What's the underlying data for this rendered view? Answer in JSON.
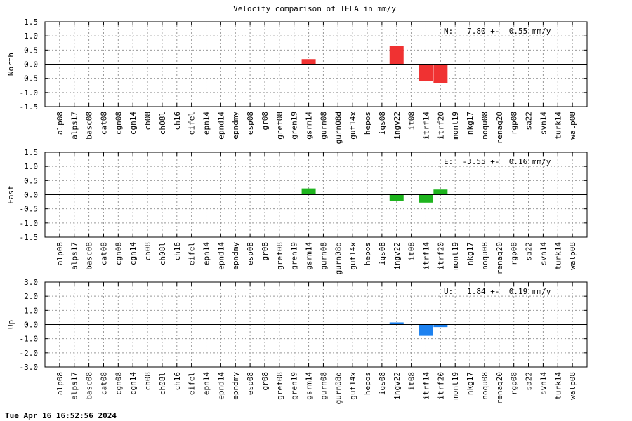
{
  "figure": {
    "title": "Velocity comparison of TELA in mm/y",
    "footer": "Tue Apr 16 16:52:56 2024"
  },
  "chart_data": [
    {
      "type": "bar",
      "ylabel": "North",
      "annotation": "N:   7.80 +-  0.55 mm/y",
      "ylim": [
        -1.5,
        1.5
      ],
      "yticks": [
        -1.5,
        -1.0,
        -0.5,
        0.0,
        0.5,
        1.0,
        1.5
      ],
      "ytick_labels": [
        "-1.5",
        "-1.0",
        "-0.5",
        "0.0",
        "0.5",
        "1.0",
        "1.5"
      ],
      "grid": true,
      "color": "#f03232",
      "categories": [
        "alp08",
        "alps17",
        "basc08",
        "cat08",
        "cgn08",
        "cgn14",
        "ch08",
        "ch08l",
        "ch16",
        "eifel",
        "epn14",
        "epnd14",
        "epndmy",
        "esp08",
        "gr08",
        "gref08",
        "gren19",
        "gsrm14",
        "gurn08",
        "gurn08d",
        "gut14x",
        "hepos",
        "igs08",
        "ingv22",
        "it08",
        "itrf14",
        "itrf20",
        "mont19",
        "nkg17",
        "noqu08",
        "renag20",
        "rgp08",
        "sa22",
        "svn14",
        "turk14",
        "walp08"
      ],
      "values": [
        0,
        0,
        0,
        0,
        0,
        0,
        0,
        0,
        0,
        0,
        0,
        0,
        0,
        0,
        0,
        0,
        0,
        0.18,
        0,
        0,
        0,
        0,
        0,
        0.65,
        0,
        -0.6,
        -0.68,
        0,
        0,
        0,
        0,
        0,
        0,
        0,
        0,
        0
      ]
    },
    {
      "type": "bar",
      "ylabel": "East",
      "annotation": "E:  -3.55 +-  0.16 mm/y",
      "ylim": [
        -1.5,
        1.5
      ],
      "yticks": [
        -1.5,
        -1.0,
        -0.5,
        0.0,
        0.5,
        1.0,
        1.5
      ],
      "ytick_labels": [
        "-1.5",
        "-1.0",
        "-0.5",
        "0.0",
        "0.5",
        "1.0",
        "1.5"
      ],
      "grid": true,
      "color": "#1eb41e",
      "categories": [
        "alp08",
        "alps17",
        "basc08",
        "cat08",
        "cgn08",
        "cgn14",
        "ch08",
        "ch08l",
        "ch16",
        "eifel",
        "epn14",
        "epnd14",
        "epndmy",
        "esp08",
        "gr08",
        "gref08",
        "gren19",
        "gsrm14",
        "gurn08",
        "gurn08d",
        "gut14x",
        "hepos",
        "igs08",
        "ingv22",
        "it08",
        "itrf14",
        "itrf20",
        "mont19",
        "nkg17",
        "noqu08",
        "renag20",
        "rgp08",
        "sa22",
        "svn14",
        "turk14",
        "walp08"
      ],
      "values": [
        0,
        0,
        0,
        0,
        0,
        0,
        0,
        0,
        0,
        0,
        0,
        0,
        0,
        0,
        0,
        0,
        0,
        0.22,
        0,
        0,
        0,
        0,
        0,
        -0.22,
        0,
        -0.28,
        0.18,
        0,
        0,
        0,
        0,
        0,
        0,
        0,
        0,
        0
      ]
    },
    {
      "type": "bar",
      "ylabel": "Up",
      "annotation": "U:   1.84 +-  0.19 mm/y",
      "ylim": [
        -3.0,
        3.0
      ],
      "yticks": [
        -3.0,
        -2.0,
        -1.0,
        0.0,
        1.0,
        2.0,
        3.0
      ],
      "ytick_labels": [
        "-3.0",
        "-2.0",
        "-1.0",
        "0.0",
        "1.0",
        "2.0",
        "3.0"
      ],
      "grid": true,
      "color": "#1e82f0",
      "categories": [
        "alp08",
        "alps17",
        "basc08",
        "cat08",
        "cgn08",
        "cgn14",
        "ch08",
        "ch08l",
        "ch16",
        "eifel",
        "epn14",
        "epnd14",
        "epndmy",
        "esp08",
        "gr08",
        "gref08",
        "gren19",
        "gsrm14",
        "gurn08",
        "gurn08d",
        "gut14x",
        "hepos",
        "igs08",
        "ingv22",
        "it08",
        "itrf14",
        "itrf20",
        "mont19",
        "nkg17",
        "noqu08",
        "renag20",
        "rgp08",
        "sa22",
        "svn14",
        "turk14",
        "walp08"
      ],
      "values": [
        0,
        0,
        0,
        0,
        0,
        0,
        0,
        0,
        0,
        0,
        0,
        0,
        0,
        0,
        0,
        0,
        0,
        0,
        0,
        0,
        0,
        0,
        0,
        0.15,
        0,
        -0.8,
        -0.18,
        0,
        0,
        0,
        0,
        0,
        0,
        0,
        0,
        0
      ]
    }
  ]
}
